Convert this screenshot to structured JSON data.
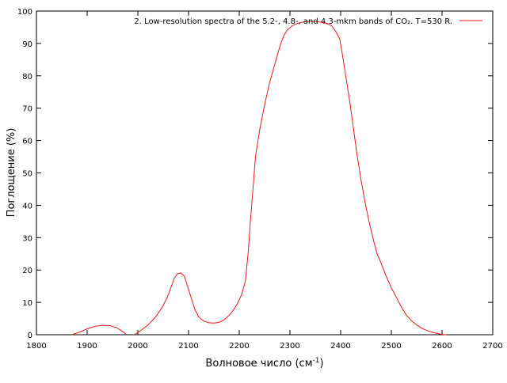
{
  "chart_data": {
    "type": "line",
    "title": "",
    "xlabel": "Волновое число (см",
    "xlabel_sup": "-1",
    "xlabel_tail": ")",
    "ylabel": "Поглощение (%)",
    "xlim": [
      1800,
      2700
    ],
    "ylim": [
      0,
      100
    ],
    "xticks": [
      1800,
      1900,
      2000,
      2100,
      2200,
      2300,
      2400,
      2500,
      2600,
      2700
    ],
    "yticks": [
      0,
      10,
      20,
      30,
      40,
      50,
      60,
      70,
      80,
      90,
      100
    ],
    "grid": false,
    "legend_position": "top-right",
    "series": [
      {
        "name": "2. Low-resolution spectra of the 5.2-, 4.8-, and 4.3-mkm bands of CO₂. T=530 R.",
        "color": "#e8191b",
        "segments": [
          [
            [
              1870,
              0
            ],
            [
              1885,
              0.8
            ],
            [
              1900,
              1.8
            ],
            [
              1915,
              2.6
            ],
            [
              1930,
              2.9
            ],
            [
              1945,
              2.8
            ],
            [
              1958,
              2.2
            ],
            [
              1970,
              1.0
            ],
            [
              1978,
              0
            ]
          ],
          [
            [
              1993,
              0
            ],
            [
              2005,
              1.2
            ],
            [
              2020,
              3.0
            ],
            [
              2035,
              5.5
            ],
            [
              2048,
              8.5
            ],
            [
              2058,
              11.5
            ],
            [
              2065,
              14.5
            ],
            [
              2072,
              17.5
            ],
            [
              2078,
              18.8
            ],
            [
              2085,
              19.1
            ],
            [
              2092,
              18.0
            ],
            [
              2098,
              15.0
            ],
            [
              2105,
              11.5
            ],
            [
              2112,
              8.0
            ],
            [
              2120,
              5.5
            ],
            [
              2130,
              4.2
            ],
            [
              2140,
              3.7
            ],
            [
              2150,
              3.6
            ],
            [
              2160,
              3.8
            ],
            [
              2170,
              4.6
            ],
            [
              2180,
              6.0
            ],
            [
              2188,
              7.5
            ],
            [
              2196,
              9.5
            ],
            [
              2205,
              12.5
            ],
            [
              2212,
              16.5
            ],
            [
              2218,
              26
            ],
            [
              2222,
              35
            ],
            [
              2228,
              47
            ],
            [
              2232,
              55
            ],
            [
              2240,
              63
            ],
            [
              2250,
              71
            ],
            [
              2260,
              78
            ],
            [
              2270,
              83.5
            ],
            [
              2280,
              89
            ],
            [
              2288,
              92.5
            ],
            [
              2295,
              94.2
            ],
            [
              2305,
              95.5
            ],
            [
              2315,
              96.2
            ],
            [
              2325,
              96.6
            ],
            [
              2340,
              96.8
            ],
            [
              2355,
              96.7
            ],
            [
              2370,
              96.3
            ],
            [
              2382,
              95.5
            ],
            [
              2390,
              93.8
            ],
            [
              2398,
              91.5
            ],
            [
              2403,
              87
            ],
            [
              2410,
              80
            ],
            [
              2418,
              72
            ],
            [
              2425,
              64
            ],
            [
              2432,
              56
            ],
            [
              2440,
              48
            ],
            [
              2448,
              41
            ],
            [
              2456,
              35
            ],
            [
              2465,
              29
            ],
            [
              2472,
              25
            ],
            [
              2480,
              22
            ],
            [
              2490,
              18
            ],
            [
              2500,
              14.5
            ],
            [
              2510,
              11.5
            ],
            [
              2520,
              8.5
            ],
            [
              2530,
              6.0
            ],
            [
              2540,
              4.3
            ],
            [
              2550,
              3.0
            ],
            [
              2560,
              2.0
            ],
            [
              2570,
              1.3
            ],
            [
              2580,
              0.8
            ],
            [
              2590,
              0.4
            ],
            [
              2600,
              0.1
            ],
            [
              2608,
              0
            ]
          ]
        ]
      }
    ]
  }
}
